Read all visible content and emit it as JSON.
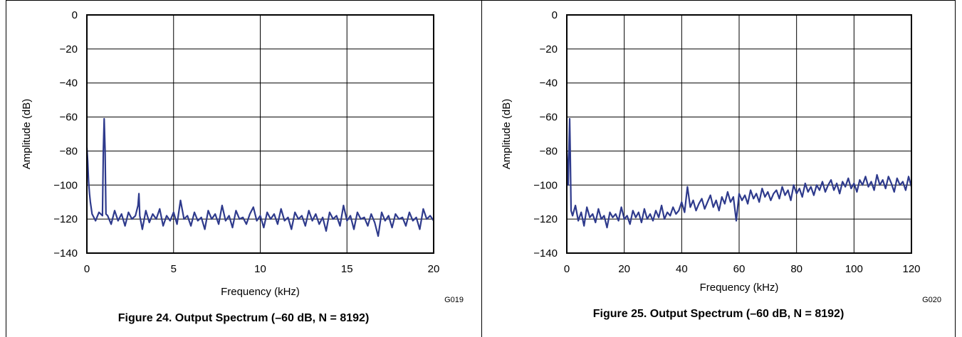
{
  "chart_data": [
    {
      "type": "line",
      "caption": "Figure 24. Output Spectrum (–60 dB, N = 8192)",
      "code": "G019",
      "xlabel": "Frequency (kHz)",
      "ylabel": "Amplitude (dB)",
      "xlim": [
        0,
        20
      ],
      "ylim": [
        -140,
        0
      ],
      "x_ticks": [
        0,
        5,
        10,
        15,
        20
      ],
      "x_tick_labels": [
        "0",
        "5",
        "10",
        "15",
        "20"
      ],
      "y_ticks": [
        0,
        -20,
        -40,
        -60,
        -80,
        -100,
        -120,
        -140
      ],
      "y_tick_labels": [
        "0",
        "−20",
        "−40",
        "−60",
        "−80",
        "−100",
        "−120",
        "−140"
      ],
      "grid": true,
      "line_color": "#2e3a8c",
      "series": [
        {
          "x": [
            0.0,
            0.05,
            0.1,
            0.15,
            0.2,
            0.3,
            0.5,
            0.7,
            0.9,
            0.95,
            1.0,
            1.05,
            1.1,
            1.2,
            1.4,
            1.6,
            1.8,
            2.0,
            2.2,
            2.4,
            2.6,
            2.8,
            2.95,
            3.0,
            3.05,
            3.2,
            3.4,
            3.6,
            3.8,
            4.0,
            4.2,
            4.4,
            4.6,
            4.8,
            5.0,
            5.2,
            5.4,
            5.6,
            5.8,
            6.0,
            6.2,
            6.4,
            6.6,
            6.8,
            7.0,
            7.2,
            7.4,
            7.6,
            7.8,
            8.0,
            8.2,
            8.4,
            8.6,
            8.8,
            9.0,
            9.2,
            9.4,
            9.6,
            9.8,
            10.0,
            10.2,
            10.4,
            10.6,
            10.8,
            11.0,
            11.2,
            11.4,
            11.6,
            11.8,
            12.0,
            12.2,
            12.4,
            12.6,
            12.8,
            13.0,
            13.2,
            13.4,
            13.6,
            13.8,
            14.0,
            14.2,
            14.4,
            14.6,
            14.8,
            15.0,
            15.2,
            15.4,
            15.6,
            15.8,
            16.0,
            16.2,
            16.4,
            16.6,
            16.8,
            17.0,
            17.2,
            17.4,
            17.6,
            17.8,
            18.0,
            18.2,
            18.4,
            18.6,
            18.8,
            19.0,
            19.2,
            19.4,
            19.6,
            19.8,
            20.0
          ],
          "y": [
            -78,
            -86,
            -98,
            -105,
            -110,
            -117,
            -121,
            -116,
            -118,
            -80,
            -61,
            -80,
            -117,
            -118,
            -123,
            -115,
            -121,
            -117,
            -124,
            -116,
            -120,
            -118,
            -112,
            -105,
            -118,
            -126,
            -115,
            -122,
            -117,
            -120,
            -114,
            -124,
            -118,
            -121,
            -116,
            -123,
            -109,
            -120,
            -118,
            -124,
            -116,
            -121,
            -119,
            -126,
            -115,
            -120,
            -117,
            -123,
            -112,
            -121,
            -118,
            -125,
            -115,
            -120,
            -119,
            -123,
            -117,
            -113,
            -121,
            -118,
            -125,
            -116,
            -120,
            -117,
            -123,
            -114,
            -121,
            -119,
            -126,
            -116,
            -120,
            -118,
            -124,
            -115,
            -121,
            -117,
            -123,
            -119,
            -127,
            -116,
            -120,
            -118,
            -124,
            -112,
            -121,
            -118,
            -126,
            -116,
            -120,
            -119,
            -124,
            -117,
            -122,
            -130,
            -116,
            -121,
            -118,
            -125,
            -117,
            -120,
            -119,
            -124,
            -116,
            -121,
            -119,
            -126,
            -114,
            -120,
            -118,
            -121
          ]
        }
      ]
    },
    {
      "type": "line",
      "caption": "Figure 25. Output Spectrum (–60 dB, N = 8192)",
      "code": "G020",
      "xlabel": "Frequency (kHz)",
      "ylabel": "Amplitude (dB)",
      "xlim": [
        0,
        120
      ],
      "ylim": [
        -140,
        0
      ],
      "x_ticks": [
        0,
        20,
        40,
        60,
        80,
        100,
        120
      ],
      "x_tick_labels": [
        "0",
        "20",
        "40",
        "60",
        "80",
        "100",
        "120"
      ],
      "y_ticks": [
        0,
        -20,
        -40,
        -60,
        -80,
        -100,
        -120,
        -140
      ],
      "y_tick_labels": [
        "0",
        "−20",
        "−40",
        "−60",
        "−80",
        "−100",
        "−120",
        "−140"
      ],
      "grid": true,
      "line_color": "#2e3a8c",
      "series": [
        {
          "x": [
            0.0,
            0.5,
            0.8,
            1.0,
            1.2,
            1.5,
            2,
            3,
            4,
            5,
            6,
            7,
            8,
            9,
            10,
            11,
            12,
            13,
            14,
            15,
            16,
            17,
            18,
            19,
            20,
            21,
            22,
            23,
            24,
            25,
            26,
            27,
            28,
            29,
            30,
            31,
            32,
            33,
            34,
            35,
            36,
            37,
            38,
            39,
            40,
            41,
            42,
            43,
            44,
            45,
            46,
            47,
            48,
            49,
            50,
            51,
            52,
            53,
            54,
            55,
            56,
            57,
            58,
            59,
            60,
            61,
            62,
            63,
            64,
            65,
            66,
            67,
            68,
            69,
            70,
            71,
            72,
            73,
            74,
            75,
            76,
            77,
            78,
            79,
            80,
            81,
            82,
            83,
            84,
            85,
            86,
            87,
            88,
            89,
            90,
            91,
            92,
            93,
            94,
            95,
            96,
            97,
            98,
            99,
            100,
            101,
            102,
            103,
            104,
            105,
            106,
            107,
            108,
            109,
            110,
            111,
            112,
            113,
            114,
            115,
            116,
            117,
            118,
            119,
            120
          ],
          "y": [
            -80,
            -100,
            -75,
            -61,
            -80,
            -115,
            -118,
            -112,
            -121,
            -116,
            -124,
            -113,
            -119,
            -117,
            -122,
            -114,
            -120,
            -118,
            -125,
            -116,
            -119,
            -117,
            -121,
            -113,
            -120,
            -118,
            -123,
            -115,
            -119,
            -116,
            -122,
            -114,
            -120,
            -117,
            -121,
            -115,
            -119,
            -112,
            -120,
            -116,
            -118,
            -113,
            -117,
            -115,
            -110,
            -116,
            -101,
            -113,
            -109,
            -115,
            -111,
            -108,
            -114,
            -110,
            -106,
            -113,
            -109,
            -115,
            -107,
            -111,
            -104,
            -110,
            -107,
            -121,
            -105,
            -109,
            -106,
            -111,
            -103,
            -108,
            -105,
            -110,
            -102,
            -107,
            -104,
            -109,
            -105,
            -103,
            -108,
            -101,
            -106,
            -103,
            -109,
            -100,
            -105,
            -102,
            -107,
            -99,
            -104,
            -101,
            -106,
            -100,
            -103,
            -98,
            -104,
            -100,
            -97,
            -103,
            -99,
            -105,
            -98,
            -101,
            -96,
            -102,
            -99,
            -104,
            -97,
            -100,
            -95,
            -101,
            -98,
            -103,
            -94,
            -100,
            -97,
            -102,
            -95,
            -99,
            -104,
            -96,
            -100,
            -98,
            -103,
            -95,
            -101
          ]
        }
      ]
    }
  ]
}
